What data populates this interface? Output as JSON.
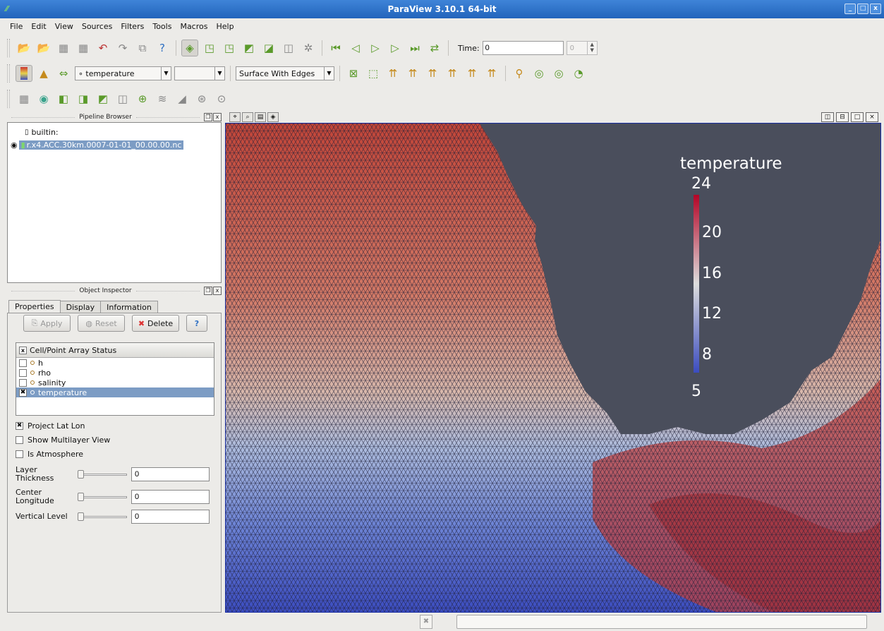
{
  "window": {
    "title": "ParaView 3.10.1 64-bit",
    "controls": [
      "_",
      "□",
      "x"
    ]
  },
  "menu": [
    "File",
    "Edit",
    "View",
    "Sources",
    "Filters",
    "Tools",
    "Macros",
    "Help"
  ],
  "toolbar_time": {
    "label": "Time:",
    "value": "0",
    "step_value": "0"
  },
  "toolbar_display": {
    "array": "temperature",
    "component": "",
    "representation": "Surface With Edges"
  },
  "pipeline_browser": {
    "title": "Pipeline Browser",
    "server": "builtin:",
    "source": "r.x4.ACC.30km.0007-01-01_00.00.00.nc"
  },
  "object_inspector": {
    "title": "Object Inspector",
    "tabs": [
      "Properties",
      "Display",
      "Information"
    ],
    "buttons": {
      "apply": "Apply",
      "reset": "Reset",
      "delete": "Delete",
      "help": "?"
    },
    "array_header": "Cell/Point Array Status",
    "arrays": [
      {
        "name": "h",
        "checked": false
      },
      {
        "name": "rho",
        "checked": false
      },
      {
        "name": "salinity",
        "checked": false
      },
      {
        "name": "temperature",
        "checked": true
      }
    ],
    "options": [
      {
        "label": "Project Lat Lon",
        "checked": true
      },
      {
        "label": "Show Multilayer View",
        "checked": false
      },
      {
        "label": "Is Atmosphere",
        "checked": false
      }
    ],
    "sliders": [
      {
        "label": "Layer Thickness",
        "value": "0"
      },
      {
        "label": "Center Longitude",
        "value": "0"
      },
      {
        "label": "Vertical Level",
        "value": "0"
      }
    ]
  },
  "render_view": {
    "scalar_bar": {
      "title": "temperature",
      "max": "24",
      "min": "5",
      "ticks": [
        "20",
        "16",
        "12",
        "8"
      ]
    },
    "colors": {
      "background": "#4a4e5c",
      "hot": "#b4282e",
      "mid": "#dcdcdc",
      "cold": "#3b4cc0",
      "edges": "#1c1c30"
    }
  }
}
